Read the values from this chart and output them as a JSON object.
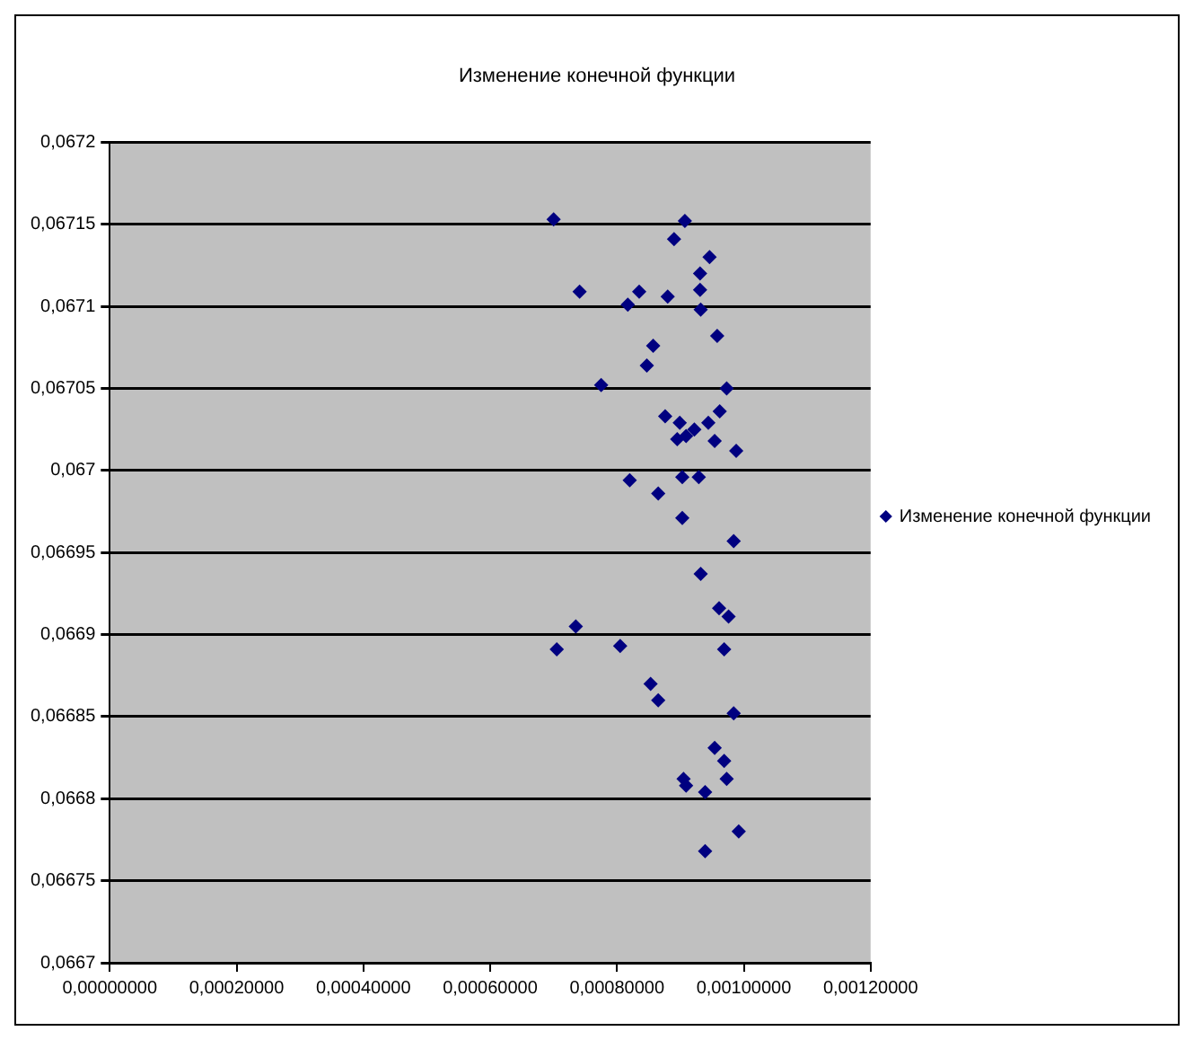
{
  "chart_data": {
    "type": "scatter",
    "title": "Изменение конечной функции",
    "legend": "right",
    "grid": "y",
    "marker": "diamond",
    "xlim": [
      0,
      0.0012
    ],
    "xticks": [
      {
        "value": 0,
        "label": "0,00000000"
      },
      {
        "value": 0.0002,
        "label": "0,00020000"
      },
      {
        "value": 0.0004,
        "label": "0,00040000"
      },
      {
        "value": 0.0006,
        "label": "0,00060000"
      },
      {
        "value": 0.0008,
        "label": "0,00080000"
      },
      {
        "value": 0.001,
        "label": "0,00100000"
      },
      {
        "value": 0.0012,
        "label": "0,00120000"
      }
    ],
    "ylim": [
      0.0667,
      0.0672
    ],
    "yticks": [
      {
        "value": 0.0667,
        "label": "0,0667"
      },
      {
        "value": 0.06675,
        "label": "0,06675"
      },
      {
        "value": 0.0668,
        "label": "0,0668"
      },
      {
        "value": 0.06685,
        "label": "0,06685"
      },
      {
        "value": 0.0669,
        "label": "0,0669"
      },
      {
        "value": 0.06695,
        "label": "0,06695"
      },
      {
        "value": 0.067,
        "label": "0,067"
      },
      {
        "value": 0.06705,
        "label": "0,06705"
      },
      {
        "value": 0.0671,
        "label": "0,0671"
      },
      {
        "value": 0.06715,
        "label": "0,06715"
      },
      {
        "value": 0.0672,
        "label": "0,0672"
      }
    ],
    "series": [
      {
        "name": "Изменение конечной функции",
        "color": "#000080",
        "x": [
          0.0007,
          0.000907,
          0.00089,
          0.000946,
          0.000931,
          0.000741,
          0.000835,
          0.00088,
          0.000931,
          0.000817,
          0.000932,
          0.000958,
          0.000857,
          0.000847,
          0.000775,
          0.000973,
          0.000962,
          0.000876,
          0.000899,
          0.000944,
          0.000895,
          0.000909,
          0.000922,
          0.000954,
          0.000988,
          0.00082,
          0.000903,
          0.000929,
          0.000865,
          0.000903,
          0.000984,
          0.000932,
          0.000961,
          0.000976,
          0.000735,
          0.000705,
          0.000805,
          0.000969,
          0.000853,
          0.000865,
          0.000984,
          0.000954,
          0.000969,
          0.000905,
          0.000909,
          0.000973,
          0.000939,
          0.000992,
          0.000939
        ],
        "values": [
          0.067153,
          0.067152,
          0.067141,
          0.06713,
          0.06712,
          0.067109,
          0.067109,
          0.067106,
          0.06711,
          0.067101,
          0.067098,
          0.067082,
          0.067076,
          0.067064,
          0.067052,
          0.06705,
          0.067036,
          0.067033,
          0.067029,
          0.067029,
          0.067019,
          0.067021,
          0.067025,
          0.067018,
          0.067012,
          0.066994,
          0.066996,
          0.066996,
          0.066986,
          0.066971,
          0.066957,
          0.066937,
          0.066916,
          0.066911,
          0.066905,
          0.066891,
          0.066893,
          0.066891,
          0.06687,
          0.06686,
          0.066852,
          0.066831,
          0.066823,
          0.066812,
          0.066808,
          0.066812,
          0.066804,
          0.06678,
          0.066768
        ]
      }
    ]
  }
}
